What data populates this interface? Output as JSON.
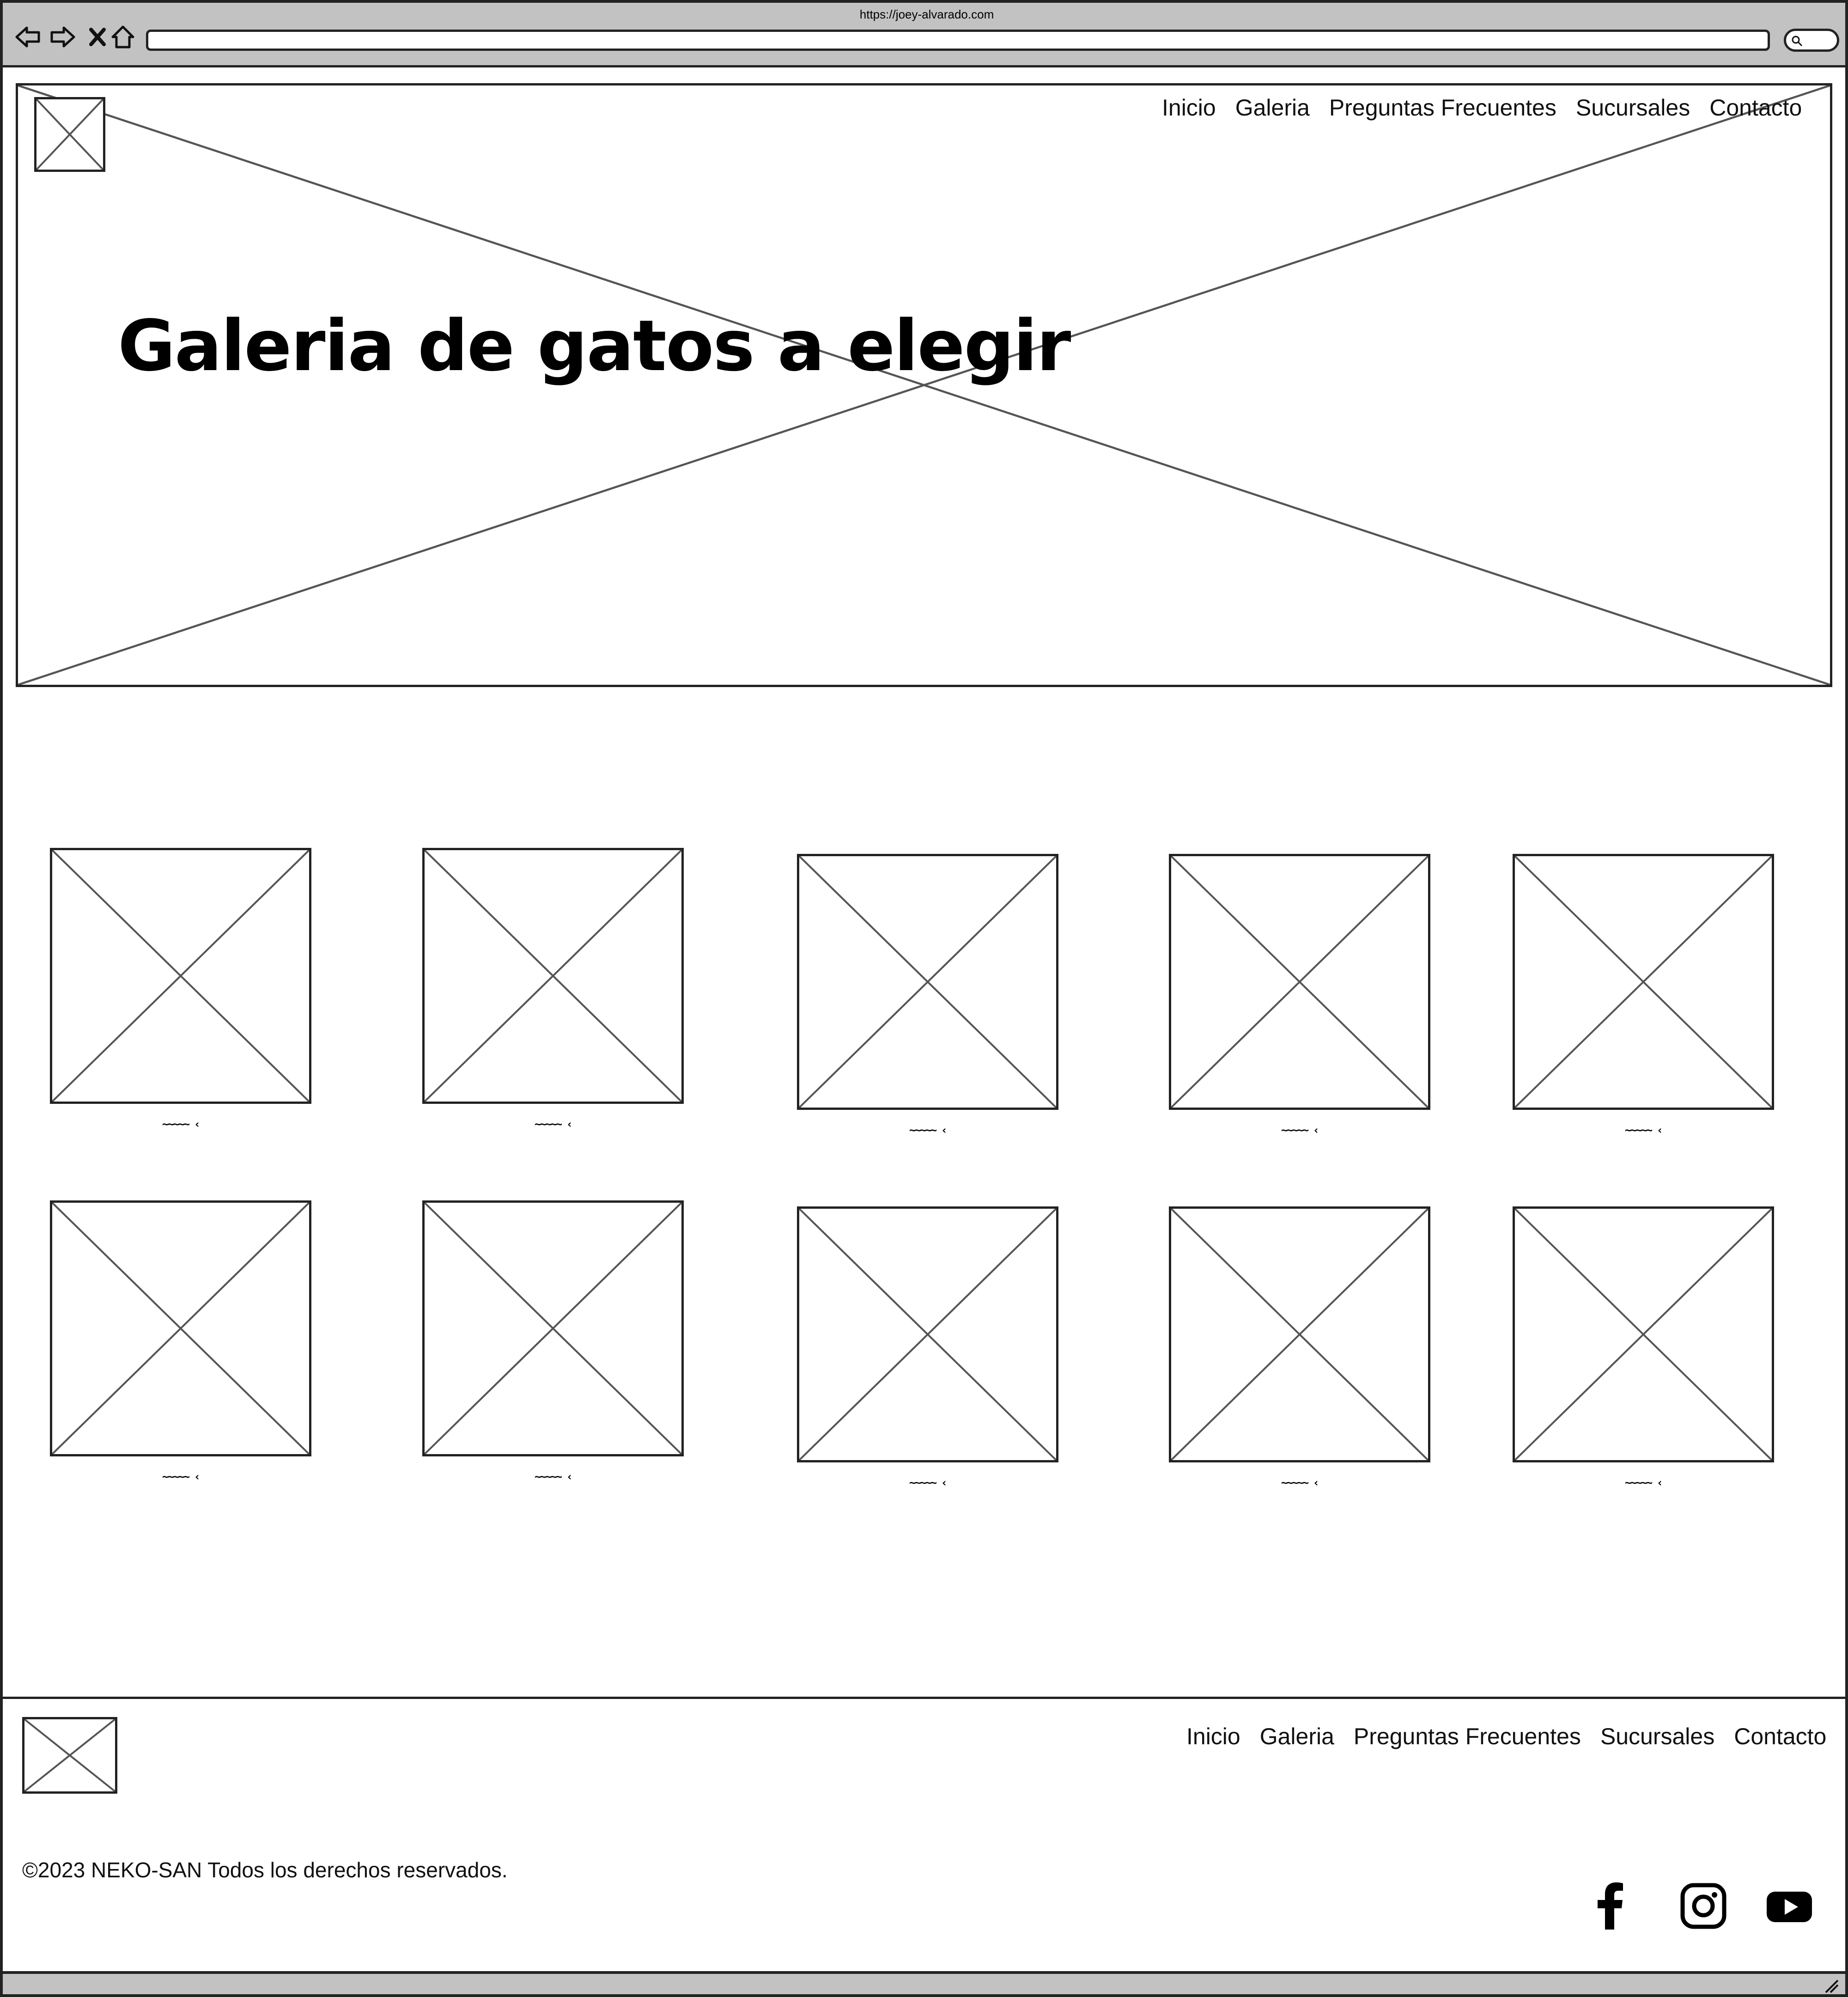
{
  "browser": {
    "url": "https://joey-alvarado.com",
    "icons": [
      "back-arrow-icon",
      "forward-arrow-icon",
      "close-icon",
      "home-icon",
      "search-icon"
    ]
  },
  "header": {
    "nav": [
      "Inicio",
      "Galeria",
      "Preguntas Frecuentes",
      "Sucursales",
      "Contacto"
    ]
  },
  "hero": {
    "title": "Galeria de gatos a elegir"
  },
  "gallery": {
    "items": [
      {
        "caption": "~~~~~ ‹"
      },
      {
        "caption": "~~~~~ ‹"
      },
      {
        "caption": "~~~~~ ‹"
      },
      {
        "caption": "~~~~~ ‹"
      },
      {
        "caption": "~~~~~ ‹"
      },
      {
        "caption": "~~~~~ ‹"
      },
      {
        "caption": "~~~~~ ‹"
      },
      {
        "caption": "~~~~~ ‹"
      },
      {
        "caption": "~~~~~ ‹"
      },
      {
        "caption": "~~~~~ ‹"
      }
    ]
  },
  "footer": {
    "nav": [
      "Inicio",
      "Galeria",
      "Preguntas Frecuentes",
      "Sucursales",
      "Contacto"
    ],
    "copyright": "©2023 NEKO-SAN Todos los derechos reservados.",
    "social_icons": [
      "facebook-icon",
      "instagram-icon",
      "youtube-icon"
    ]
  },
  "colors": {
    "chrome": "#c2c2c2",
    "stroke": "#222222",
    "placeholder_line": "#555555"
  }
}
